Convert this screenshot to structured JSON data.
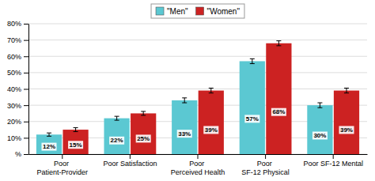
{
  "chart_data": {
    "type": "bar",
    "categories": [
      "Poor Patient-Provider",
      "Poor Satisfaction",
      "Poor Perceived Health",
      "Poor SF-12 Physical",
      "Poor SF-12 Mental"
    ],
    "series": [
      {
        "name": "\"Men\"",
        "color": "#5BC8D2",
        "values": [
          12,
          22,
          33,
          57,
          30
        ],
        "value_labels": [
          "12%",
          "22%",
          "33%",
          "57%",
          "30%"
        ],
        "errors": [
          1.0,
          1.2,
          1.5,
          1.5,
          1.5
        ]
      },
      {
        "name": "\"Women\"",
        "color": "#CC2222",
        "values": [
          15,
          25,
          39,
          68,
          39
        ],
        "value_labels": [
          "15%",
          "25%",
          "39%",
          "68%",
          "39%"
        ],
        "errors": [
          1.2,
          1.2,
          1.5,
          1.5,
          1.5
        ]
      }
    ],
    "ylim": [
      0,
      80
    ],
    "yticks": [
      {
        "value": 0,
        "label": "%"
      },
      {
        "value": 10,
        "label": "10%"
      },
      {
        "value": 20,
        "label": "20%"
      },
      {
        "value": 30,
        "label": "30%"
      },
      {
        "value": 40,
        "label": "40%"
      },
      {
        "value": 50,
        "label": "50%"
      },
      {
        "value": 60,
        "label": "60%"
      },
      {
        "value": 70,
        "label": "70%"
      },
      {
        "value": 80,
        "label": "80%"
      }
    ],
    "grid": true,
    "legend": "top",
    "data_labels": true
  }
}
